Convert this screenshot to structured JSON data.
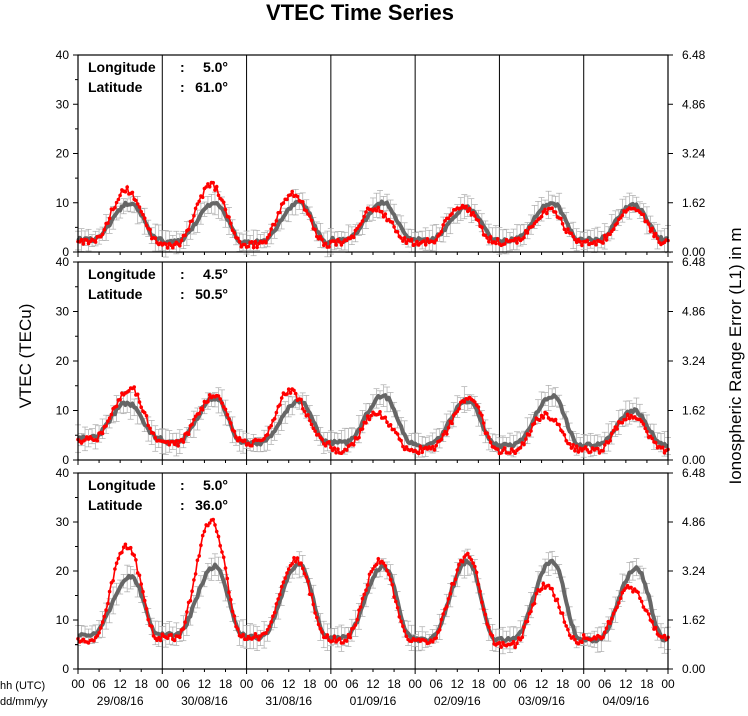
{
  "chart_data": {
    "type": "line",
    "title": "VTEC Time Series",
    "ylabel_left": "VTEC (TECu)",
    "ylabel_right": "Ionospheric Range Error (L1) in m",
    "x_corner_labels": [
      "hh (UTC)",
      "dd/mm/yy"
    ],
    "hour_ticks": [
      "00",
      "06",
      "12",
      "18"
    ],
    "x_end_tick": "00",
    "dates": [
      "29/08/16",
      "30/08/16",
      "31/08/16",
      "01/09/16",
      "02/09/16",
      "03/09/16",
      "04/09/16"
    ],
    "day_count": 7,
    "colors": {
      "observed": "#ff0000",
      "reference": "#666666",
      "error_bar": "#aaaaaa"
    },
    "panels": [
      {
        "longitude_label": "Longitude",
        "longitude_sep": ":",
        "longitude_value": "5.0°",
        "latitude_label": "Latitude",
        "latitude_sep": ":",
        "latitude_value": "61.0°",
        "y_ticks": [
          "0",
          "10",
          "20",
          "30",
          "40"
        ],
        "ylim": [
          0,
          40
        ],
        "right_ticks": [
          "0.00",
          "1.62",
          "3.24",
          "4.86",
          "6.48"
        ],
        "series": [
          {
            "role": "reference",
            "daily_min": [
              2.5,
              2.0,
              2.0,
              2.5,
              2.5,
              2.5,
              2.5
            ],
            "daily_max": [
              10.0,
              10.0,
              10.0,
              10.0,
              9.0,
              10.0,
              9.5
            ],
            "peak_hour": [
              15,
              15,
              15,
              15,
              15,
              15,
              14
            ]
          },
          {
            "role": "observed",
            "daily_min": [
              2.0,
              1.5,
              1.5,
              2.0,
              2.0,
              2.0,
              2.0
            ],
            "daily_max": [
              12.5,
              13.5,
              12.0,
              9.0,
              9.5,
              8.5,
              9.0
            ],
            "peak_hour": [
              14,
              14,
              13,
              12,
              13,
              14,
              14
            ]
          }
        ]
      },
      {
        "longitude_label": "Longitude",
        "longitude_sep": ":",
        "longitude_value": "4.5°",
        "latitude_label": "Latitude",
        "latitude_sep": ":",
        "latitude_value": "50.5°",
        "y_ticks": [
          "0",
          "10",
          "20",
          "30",
          "40"
        ],
        "ylim": [
          0,
          40
        ],
        "right_ticks": [
          "0.00",
          "1.62",
          "3.24",
          "4.86",
          "6.48"
        ],
        "series": [
          {
            "role": "reference",
            "daily_min": [
              4.5,
              3.5,
              3.5,
              3.5,
              3.0,
              3.0,
              3.0
            ],
            "daily_max": [
              11.5,
              12.5,
              12.0,
              13.0,
              12.0,
              13.0,
              10.0
            ],
            "peak_hour": [
              14,
              15,
              15,
              15,
              15,
              15,
              14
            ]
          },
          {
            "role": "observed",
            "daily_min": [
              4.0,
              3.5,
              3.5,
              2.0,
              2.0,
              2.0,
              2.0
            ],
            "daily_max": [
              14.5,
              13.0,
              14.0,
              9.5,
              12.5,
              9.0,
              9.0
            ],
            "peak_hour": [
              15,
              15,
              12,
              13,
              16,
              13,
              13
            ]
          }
        ]
      },
      {
        "longitude_label": "Longitude",
        "longitude_sep": ":",
        "longitude_value": "5.0°",
        "latitude_label": "Latitude",
        "latitude_sep": ":",
        "latitude_value": "36.0°",
        "y_ticks": [
          "0",
          "10",
          "20",
          "30",
          "40"
        ],
        "ylim": [
          0,
          40
        ],
        "right_ticks": [
          "0.00",
          "1.62",
          "3.24",
          "4.86",
          "6.48"
        ],
        "series": [
          {
            "role": "reference",
            "daily_min": [
              7.0,
              7.0,
              6.5,
              6.5,
              6.0,
              6.0,
              6.0
            ],
            "daily_max": [
              19.0,
              21.0,
              21.5,
              21.0,
              22.0,
              22.0,
              20.5
            ],
            "peak_hour": [
              15,
              15,
              15,
              15,
              15,
              15,
              15
            ]
          },
          {
            "role": "observed",
            "daily_min": [
              6.0,
              6.5,
              6.5,
              6.0,
              5.5,
              5.0,
              6.5
            ],
            "daily_max": [
              25.0,
              30.0,
              22.5,
              22.0,
              23.0,
              17.0,
              16.5
            ],
            "peak_hour": [
              14,
              14,
              14,
              14,
              15,
              13,
              13
            ]
          }
        ]
      }
    ]
  }
}
